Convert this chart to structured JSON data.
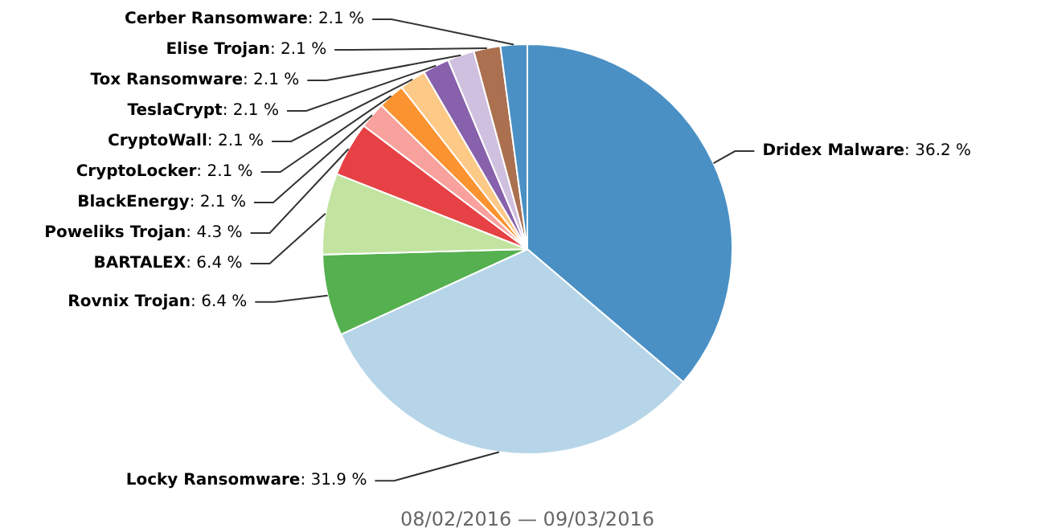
{
  "chart_data": {
    "type": "pie",
    "categories": [
      "Dridex Malware",
      "Locky Ransomware",
      "Rovnix Trojan",
      "BARTALEX",
      "Poweliks Trojan",
      "BlackEnergy",
      "CryptoLocker",
      "CryptoWall",
      "TeslaCrypt",
      "Tox Ransomware",
      "Elise Trojan",
      "Cerber Ransomware"
    ],
    "values": [
      36.2,
      31.9,
      6.4,
      6.4,
      4.3,
      2.1,
      2.1,
      2.1,
      2.1,
      2.1,
      2.1,
      2.1
    ],
    "colors": [
      "#4a90c4",
      "#b6d5e8",
      "#55b04f",
      "#c2e4a0",
      "#e64144",
      "#f9a19d",
      "#fb9331",
      "#fdc987",
      "#8761ab",
      "#d0c0df",
      "#aa7050",
      "#4a90c4"
    ],
    "value_labels": [
      ": 36.2 %",
      ": 31.9 %",
      ": 6.4 %",
      ": 6.4 %",
      ": 4.3 %",
      ": 2.1 %",
      ": 2.1 %",
      ": 2.1 %",
      ": 2.1 %",
      ": 2.1 %",
      ": 2.1 %",
      ": 2.1 %"
    ],
    "annotations": [
      "08/02/2016 — 09/03/2016"
    ]
  }
}
